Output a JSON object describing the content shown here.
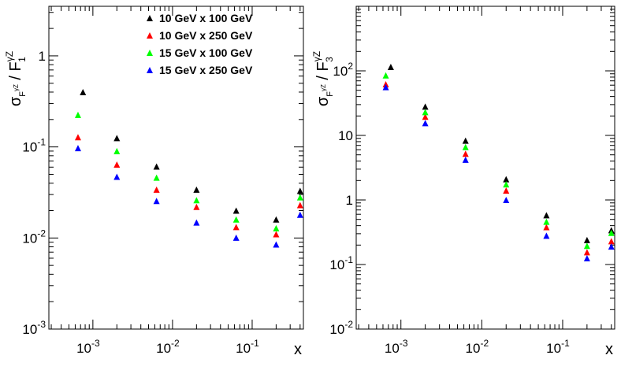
{
  "chart_data": [
    {
      "type": "scatter",
      "id": "left",
      "ylabel": "σ / F",
      "ylabel_sub_sigma": "F₁",
      "ylabel_sup_sigma": "γZ",
      "ylabel_sup_F": "γZ",
      "ylabel_sub_F": "1",
      "xlabel": "x",
      "xscale": "log",
      "yscale": "log",
      "xlim": [
        0.00028,
        0.44
      ],
      "ylim": [
        0.001,
        3.5
      ],
      "xticks": [
        {
          "base": "10",
          "exp": "-3",
          "value": 0.001
        },
        {
          "base": "10",
          "exp": "-2",
          "value": 0.01
        },
        {
          "base": "10",
          "exp": "-1",
          "value": 0.1
        }
      ],
      "yticks": [
        {
          "base": "10",
          "exp": "-3",
          "value": 0.001
        },
        {
          "base": "10",
          "exp": "-2",
          "value": 0.01
        },
        {
          "base": "10",
          "exp": "-1",
          "value": 0.1
        },
        {
          "base": "1",
          "exp": "",
          "value": 1
        }
      ],
      "legend": {
        "position": "top-right"
      },
      "series": [
        {
          "name": "10 GeV x 100 GeV",
          "color": "#000000",
          "x": [
            0.00075,
            0.002,
            0.0063,
            0.02,
            0.063,
            0.2,
            0.4
          ],
          "y": [
            0.4,
            0.125,
            0.061,
            0.034,
            0.02,
            0.016,
            0.033
          ]
        },
        {
          "name": "10 GeV x 250 GeV",
          "color": "#ff0000",
          "x": [
            0.00065,
            0.002,
            0.0063,
            0.02,
            0.063,
            0.2,
            0.4
          ],
          "y": [
            0.128,
            0.064,
            0.034,
            0.022,
            0.0132,
            0.011,
            0.023
          ]
        },
        {
          "name": "15 GeV x 100 GeV",
          "color": "#00ff00",
          "x": [
            0.00065,
            0.002,
            0.0063,
            0.02,
            0.063,
            0.2,
            0.4
          ],
          "y": [
            0.225,
            0.09,
            0.046,
            0.026,
            0.016,
            0.0128,
            0.028
          ]
        },
        {
          "name": "15 GeV x 250 GeV",
          "color": "#0000ff",
          "x": [
            0.00065,
            0.002,
            0.0063,
            0.02,
            0.063,
            0.2,
            0.4
          ],
          "y": [
            0.097,
            0.047,
            0.0255,
            0.0148,
            0.0101,
            0.0085,
            0.018
          ]
        }
      ]
    },
    {
      "type": "scatter",
      "id": "right",
      "ylabel": "σ / F",
      "ylabel_sub_sigma": "F₃",
      "ylabel_sup_sigma": "γZ",
      "ylabel_sup_F": "γZ",
      "ylabel_sub_F": "3",
      "xlabel": "x",
      "xscale": "log",
      "yscale": "log",
      "xlim": [
        0.00028,
        0.44
      ],
      "ylim": [
        0.01,
        1000
      ],
      "xticks": [
        {
          "base": "10",
          "exp": "-3",
          "value": 0.001
        },
        {
          "base": "10",
          "exp": "-2",
          "value": 0.01
        },
        {
          "base": "10",
          "exp": "-1",
          "value": 0.1
        }
      ],
      "yticks": [
        {
          "base": "10",
          "exp": "-2",
          "value": 0.01
        },
        {
          "base": "10",
          "exp": "-1",
          "value": 0.1
        },
        {
          "base": "1",
          "exp": "",
          "value": 1
        },
        {
          "base": "10",
          "exp": "",
          "value": 10
        },
        {
          "base": "10",
          "exp": "2",
          "value": 100
        }
      ],
      "series": [
        {
          "name": "10 GeV x 100 GeV",
          "color": "#000000",
          "x": [
            0.00075,
            0.002,
            0.0063,
            0.02,
            0.063,
            0.2,
            0.4
          ],
          "y": [
            115,
            28,
            8.3,
            2.1,
            0.58,
            0.24,
            0.34
          ]
        },
        {
          "name": "10 GeV x 250 GeV",
          "color": "#ff0000",
          "x": [
            0.00065,
            0.002,
            0.0063,
            0.02,
            0.063,
            0.2,
            0.4
          ],
          "y": [
            62,
            19.5,
            5.2,
            1.4,
            0.38,
            0.155,
            0.23
          ]
        },
        {
          "name": "15 GeV x 100 GeV",
          "color": "#00ff00",
          "x": [
            0.00065,
            0.002,
            0.0063,
            0.02,
            0.063,
            0.2,
            0.4
          ],
          "y": [
            85,
            23,
            6.6,
            1.75,
            0.46,
            0.195,
            0.31
          ]
        },
        {
          "name": "15 GeV x 250 GeV",
          "color": "#0000ff",
          "x": [
            0.00065,
            0.002,
            0.0063,
            0.02,
            0.063,
            0.2,
            0.4
          ],
          "y": [
            56,
            15.5,
            4.2,
            1.0,
            0.28,
            0.125,
            0.19
          ]
        }
      ]
    }
  ]
}
